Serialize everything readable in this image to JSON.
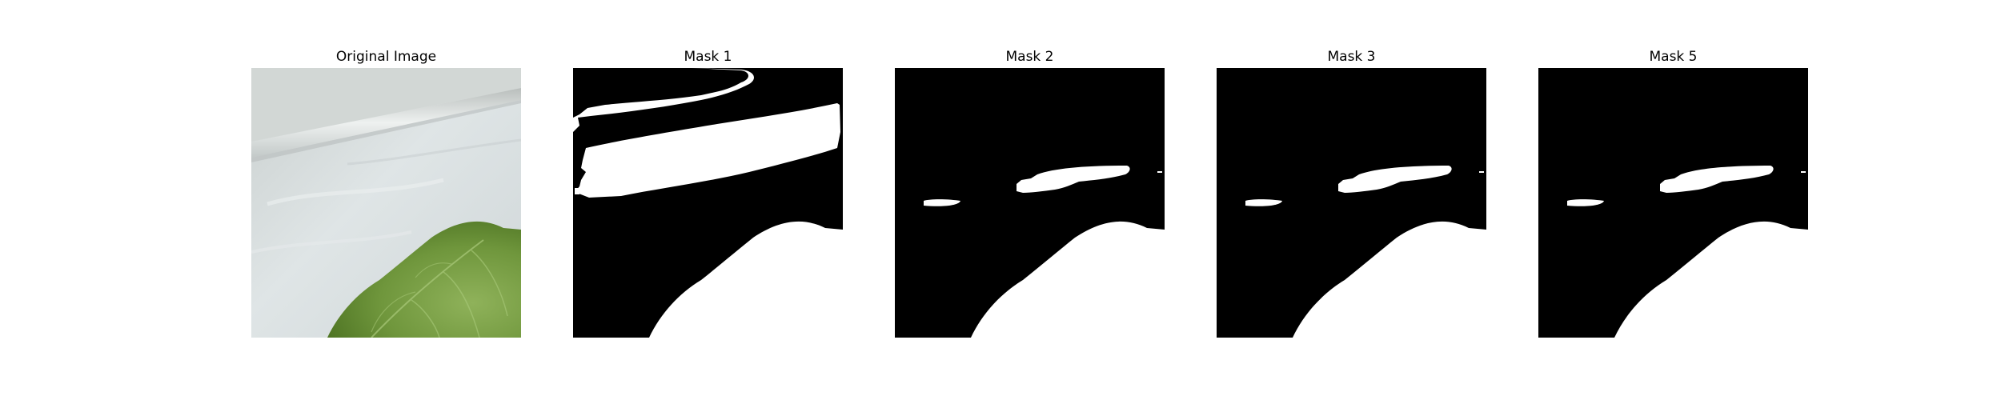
{
  "figure": {
    "panels": [
      {
        "title": "Original Image",
        "kind": "photo"
      },
      {
        "title": "Mask 1",
        "kind": "mask-1"
      },
      {
        "title": "Mask 2",
        "kind": "mask-small"
      },
      {
        "title": "Mask 3",
        "kind": "mask-small"
      },
      {
        "title": "Mask 5",
        "kind": "mask-small"
      }
    ],
    "colors": {
      "background": "#ffffff",
      "mask_fill": "#000000",
      "mask_foreground": "#ffffff",
      "leaf_green": "#7aa048",
      "wall_gray": "#d6dcdd"
    }
  }
}
